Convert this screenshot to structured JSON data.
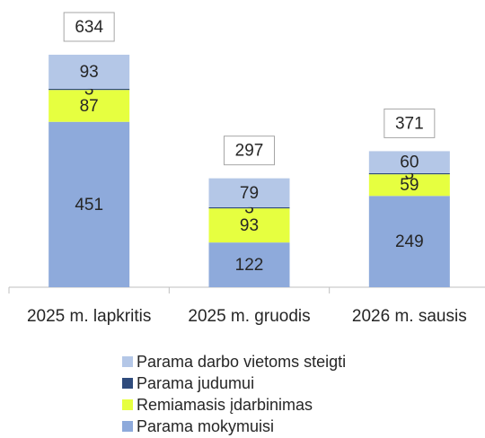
{
  "chart_data": {
    "type": "stacked_bar",
    "categories": [
      "2025 m. lapkritis",
      "2025 m. gruodis",
      "2026 m. sausis"
    ],
    "series": [
      {
        "name": "Parama mokymuisi",
        "color": "#8eaadb",
        "values": [
          451,
          122,
          249
        ]
      },
      {
        "name": "Remiamasis įdarbinimas",
        "color": "#e6ff40",
        "values": [
          87,
          93,
          59
        ]
      },
      {
        "name": "Parama judumui",
        "color": "#2f4b7c",
        "values": [
          3,
          3,
          3
        ]
      },
      {
        "name": "Parama darbo vietoms steigti",
        "color": "#b4c7e7",
        "values": [
          93,
          79,
          60
        ]
      }
    ],
    "totals": [
      634,
      297,
      371
    ],
    "ylim": [
      0,
      700
    ]
  }
}
